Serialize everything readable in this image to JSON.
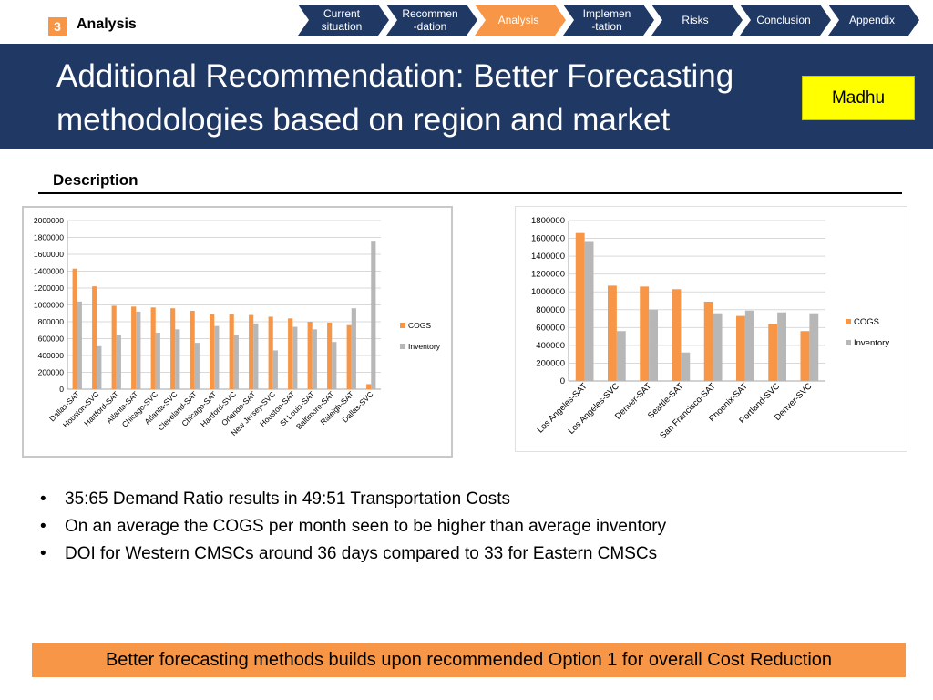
{
  "header": {
    "section_number": "3",
    "section_label": "Analysis",
    "nav": [
      {
        "line1": "Current",
        "line2": "situation",
        "active": false
      },
      {
        "line1": "Recommen",
        "line2": "-dation",
        "active": false
      },
      {
        "line1": "Analysis",
        "line2": "",
        "active": true
      },
      {
        "line1": "Implemen",
        "line2": "-tation",
        "active": false
      },
      {
        "line1": "Risks",
        "line2": "",
        "active": false
      },
      {
        "line1": "Conclusion",
        "line2": "",
        "active": false
      },
      {
        "line1": "Appendix",
        "line2": "",
        "active": false
      }
    ]
  },
  "title": {
    "line1": "Additional Recommendation: Better Forecasting",
    "line2": "methodologies based on region and market"
  },
  "presenter": "Madhu",
  "description_label": "Description",
  "chart_data": [
    {
      "type": "bar",
      "categories": [
        "Dallas-SAT",
        "Houston-SVC",
        "Hartford-SAT",
        "Atlanta-SAT",
        "Chicago-SVC",
        "Atlanta-SVC",
        "Cleveland-SAT",
        "Chicago-SAT",
        "Hartford-SVC",
        "Orlando-SAT",
        "New Jersey-SVC",
        "Houston-SAT",
        "St Louis-SAT",
        "Baltimore-SAT",
        "Raleigh-SAT",
        "Dallas-SVC"
      ],
      "series": [
        {
          "name": "COGS",
          "values": [
            1430000,
            1220000,
            990000,
            980000,
            970000,
            960000,
            930000,
            890000,
            890000,
            880000,
            860000,
            840000,
            800000,
            790000,
            760000,
            60000
          ]
        },
        {
          "name": "Inventory",
          "values": [
            1040000,
            510000,
            640000,
            920000,
            670000,
            710000,
            550000,
            750000,
            640000,
            780000,
            460000,
            740000,
            710000,
            560000,
            960000,
            1760000
          ]
        }
      ],
      "title": "",
      "xlabel": "",
      "ylabel": "",
      "ylim": [
        0,
        2000000
      ],
      "yticks": [
        "0",
        "200000",
        "400000",
        "600000",
        "800000",
        "1000000",
        "1200000",
        "1400000",
        "1600000",
        "1800000",
        "2000000"
      ],
      "legend": [
        "COGS",
        "Inventory"
      ],
      "legend_position": "right",
      "colors": [
        "#f79646",
        "#b7b7b7"
      ]
    },
    {
      "type": "bar",
      "categories": [
        "Los Angeles-SAT",
        "Los Angeles-SVC",
        "Denver-SAT",
        "Seattle-SAT",
        "San Francisco-SAT",
        "Phoenix-SAT",
        "Portland-SVC",
        "Denver-SVC"
      ],
      "series": [
        {
          "name": "COGS",
          "values": [
            1660000,
            1070000,
            1060000,
            1030000,
            890000,
            730000,
            640000,
            560000
          ]
        },
        {
          "name": "Inventory",
          "values": [
            1570000,
            560000,
            800000,
            320000,
            760000,
            790000,
            770000,
            760000
          ]
        }
      ],
      "title": "",
      "xlabel": "",
      "ylabel": "",
      "ylim": [
        0,
        1800000
      ],
      "yticks": [
        "0",
        "200000",
        "400000",
        "600000",
        "800000",
        "1000000",
        "1200000",
        "1400000",
        "1600000",
        "1800000"
      ],
      "legend": [
        "COGS",
        "Inventory"
      ],
      "legend_position": "right",
      "colors": [
        "#f79646",
        "#b7b7b7"
      ]
    }
  ],
  "bullets": [
    "35:65 Demand Ratio results in 49:51 Transportation Costs",
    "On an average the COGS per month seen to be higher than average inventory",
    "DOI for Western CMSCs around 36 days compared to 33 for Eastern CMSCs"
  ],
  "footer": "Better forecasting methods builds upon recommended Option 1 for overall Cost Reduction",
  "colors": {
    "navy": "#1f3864",
    "orange": "#f79646",
    "yellow": "#ffff00",
    "nav_inactive": "#1f3864",
    "nav_active": "#f79646"
  }
}
